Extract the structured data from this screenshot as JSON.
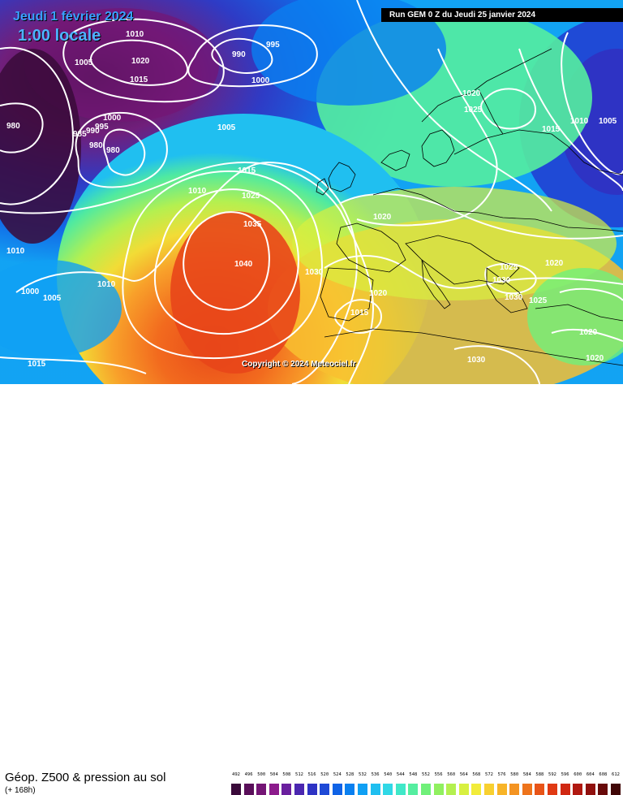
{
  "header": {
    "date_label": "Jeudi 1 février 2024",
    "time_label": "1:00 locale",
    "run_label": "Run GEM 0 Z du Jeudi 25 janvier 2024"
  },
  "copyright": "Copyright © 2024 Meteociel.fr",
  "footer": {
    "product": "Géop. Z500 & pression au sol",
    "lead": "(+ 168h)"
  },
  "scale_labels": [
    "492",
    "496",
    "500",
    "504",
    "508",
    "512",
    "516",
    "520",
    "524",
    "528",
    "532",
    "536",
    "540",
    "544",
    "548",
    "552",
    "556",
    "560",
    "564",
    "568",
    "572",
    "576",
    "580",
    "584",
    "588",
    "592",
    "596",
    "600",
    "604",
    "608",
    "612"
  ],
  "scale_colors": [
    "#3a0a3a",
    "#5a0f5a",
    "#741575",
    "#8c1b8c",
    "#6a1f9e",
    "#4b27b0",
    "#2e33c4",
    "#1f4ad6",
    "#1063e6",
    "#0a80f0",
    "#10a0f4",
    "#20bff0",
    "#30d8e6",
    "#40e8c8",
    "#55eea0",
    "#70f07a",
    "#90f060",
    "#b4f050",
    "#d8f040",
    "#f2ec3a",
    "#f8d030",
    "#f8b428",
    "#f49422",
    "#ee741c",
    "#e85418",
    "#e03a14",
    "#d02812",
    "#b01810",
    "#90100e",
    "#680a0a",
    "#400606"
  ],
  "pressure_labels": [
    "1010",
    "1020",
    "1015",
    "1005",
    "995",
    "990",
    "1000",
    "980",
    "985",
    "990",
    "995",
    "1000",
    "980",
    "980",
    "1005",
    "1015",
    "1010",
    "1025",
    "1035",
    "1040",
    "1030",
    "1020",
    "1015",
    "1010",
    "1005",
    "1000",
    "1015",
    "1020",
    "1025",
    "1015",
    "1010",
    "1005",
    "1020",
    "1025",
    "1030",
    "1020",
    "1030",
    "1025",
    "1020",
    "1030",
    "1010",
    "1020"
  ]
}
